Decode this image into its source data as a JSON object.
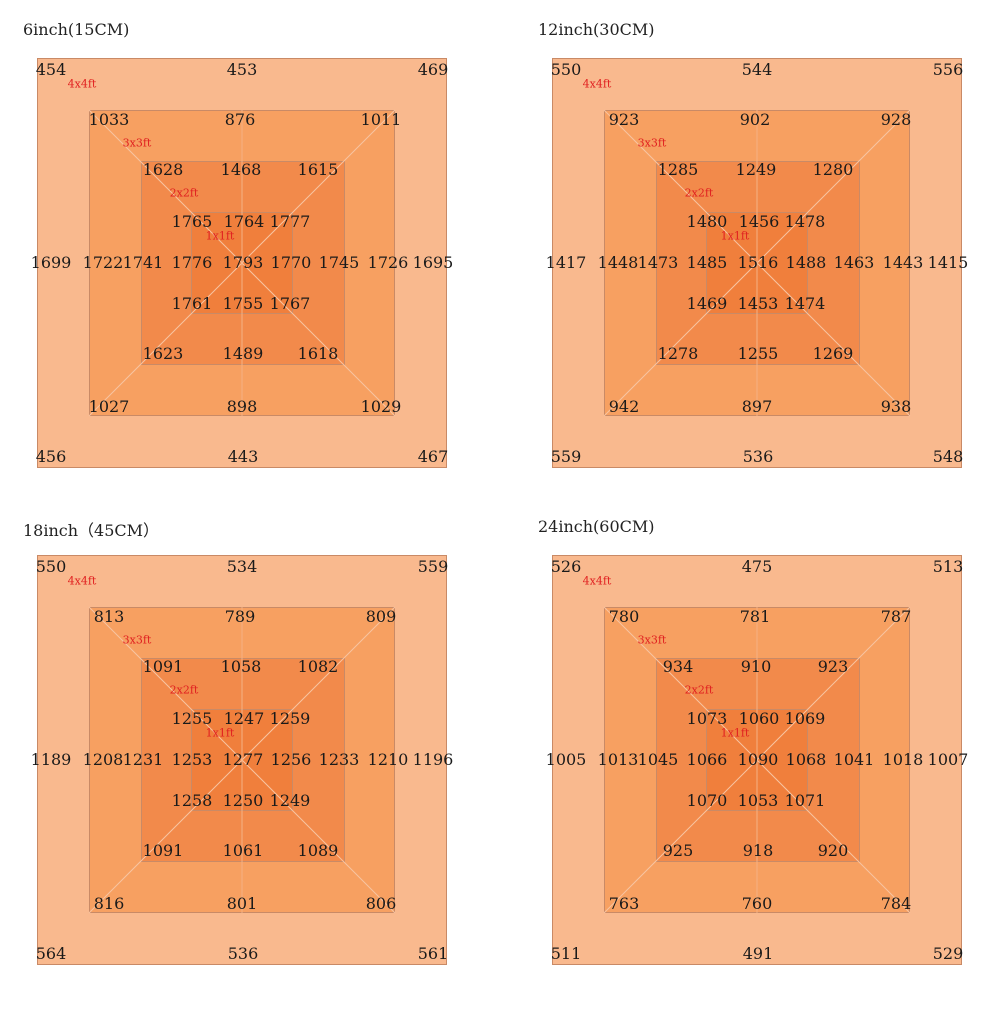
{
  "zone_labels": [
    "4x4ft",
    "3x3ft",
    "2x2ft",
    "1x1ft"
  ],
  "colors": {
    "zone_4x4": "#f9b98e",
    "zone_3x3": "#f7a061",
    "zone_2x2": "#f28a4b",
    "zone_1x1": "#f07f3c",
    "zone_label": "#e02020"
  },
  "panels": [
    {
      "title": "6inch(15CM)",
      "values": {
        "ring4_top": [
          "454",
          "453",
          "469"
        ],
        "ring4_mid": [
          "1699",
          "1695"
        ],
        "ring4_bottom": [
          "456",
          "443",
          "467"
        ],
        "ring3_top": [
          "1033",
          "876",
          "1011"
        ],
        "ring3_mid": [
          "1722",
          "1726"
        ],
        "ring3_bottom": [
          "1027",
          "898",
          "1029"
        ],
        "ring2_top": [
          "1628",
          "1468",
          "1615"
        ],
        "ring2_mid": [
          "1741",
          "1745"
        ],
        "ring2_bottom": [
          "1623",
          "1489",
          "1618"
        ],
        "ring1_top": [
          "1765",
          "1764",
          "1777"
        ],
        "ring1_mid": [
          "1776",
          "1793",
          "1770"
        ],
        "ring1_bottom": [
          "1761",
          "1755",
          "1767"
        ]
      }
    },
    {
      "title": "12inch(30CM)",
      "values": {
        "ring4_top": [
          "550",
          "544",
          "556"
        ],
        "ring4_mid": [
          "1417",
          "1415"
        ],
        "ring4_bottom": [
          "559",
          "536",
          "548"
        ],
        "ring3_top": [
          "923",
          "902",
          "928"
        ],
        "ring3_mid": [
          "1448",
          "1443"
        ],
        "ring3_bottom": [
          "942",
          "897",
          "938"
        ],
        "ring2_top": [
          "1285",
          "1249",
          "1280"
        ],
        "ring2_mid": [
          "1473",
          "1463"
        ],
        "ring2_bottom": [
          "1278",
          "1255",
          "1269"
        ],
        "ring1_top": [
          "1480",
          "1456",
          "1478"
        ],
        "ring1_mid": [
          "1485",
          "1516",
          "1488"
        ],
        "ring1_bottom": [
          "1469",
          "1453",
          "1474"
        ]
      }
    },
    {
      "title": "18inch（45CM）",
      "values": {
        "ring4_top": [
          "550",
          "534",
          "559"
        ],
        "ring4_mid": [
          "1189",
          "1196"
        ],
        "ring4_bottom": [
          "564",
          "536",
          "561"
        ],
        "ring3_top": [
          "813",
          "789",
          "809"
        ],
        "ring3_mid": [
          "1208",
          "1210"
        ],
        "ring3_bottom": [
          "816",
          "801",
          "806"
        ],
        "ring2_top": [
          "1091",
          "1058",
          "1082"
        ],
        "ring2_mid": [
          "1231",
          "1233"
        ],
        "ring2_bottom": [
          "1091",
          "1061",
          "1089"
        ],
        "ring1_top": [
          "1255",
          "1247",
          "1259"
        ],
        "ring1_mid": [
          "1253",
          "1277",
          "1256"
        ],
        "ring1_bottom": [
          "1258",
          "1250",
          "1249"
        ]
      }
    },
    {
      "title": "24inch(60CM)",
      "values": {
        "ring4_top": [
          "526",
          "475",
          "513"
        ],
        "ring4_mid": [
          "1005",
          "1007"
        ],
        "ring4_bottom": [
          "511",
          "491",
          "529"
        ],
        "ring3_top": [
          "780",
          "781",
          "787"
        ],
        "ring3_mid": [
          "1013",
          "1018"
        ],
        "ring3_bottom": [
          "763",
          "760",
          "784"
        ],
        "ring2_top": [
          "934",
          "910",
          "923"
        ],
        "ring2_mid": [
          "1045",
          "1041"
        ],
        "ring2_bottom": [
          "925",
          "918",
          "920"
        ],
        "ring1_top": [
          "1073",
          "1060",
          "1069"
        ],
        "ring1_mid": [
          "1066",
          "1090",
          "1068"
        ],
        "ring1_bottom": [
          "1070",
          "1053",
          "1071"
        ]
      }
    }
  ]
}
